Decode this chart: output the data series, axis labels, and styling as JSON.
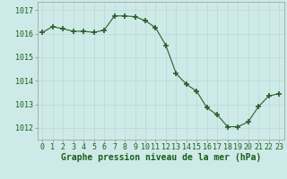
{
  "hours": [
    0,
    1,
    2,
    3,
    4,
    5,
    6,
    7,
    8,
    9,
    10,
    11,
    12,
    13,
    14,
    15,
    16,
    17,
    18,
    19,
    20,
    21,
    22,
    23
  ],
  "pressure": [
    1016.05,
    1016.3,
    1016.2,
    1016.1,
    1016.1,
    1016.05,
    1016.15,
    1016.75,
    1016.75,
    1016.72,
    1016.55,
    1016.25,
    1015.5,
    1014.3,
    1013.85,
    1013.55,
    1012.85,
    1012.55,
    1012.05,
    1012.05,
    1012.25,
    1012.9,
    1013.35,
    1013.45
  ],
  "line_color": "#2a5e2a",
  "marker_color": "#2a5e2a",
  "bg_color": "#ceeae8",
  "grid_color": "#b8d8d4",
  "xlabel": "Graphe pression niveau de la mer (hPa)",
  "ylabel_ticks": [
    1012,
    1013,
    1014,
    1015,
    1016,
    1017
  ],
  "xlim": [
    -0.5,
    23.5
  ],
  "ylim": [
    1011.5,
    1017.35
  ],
  "text_color": "#1a5e1a",
  "title_fontsize": 7,
  "tick_fontsize": 6
}
